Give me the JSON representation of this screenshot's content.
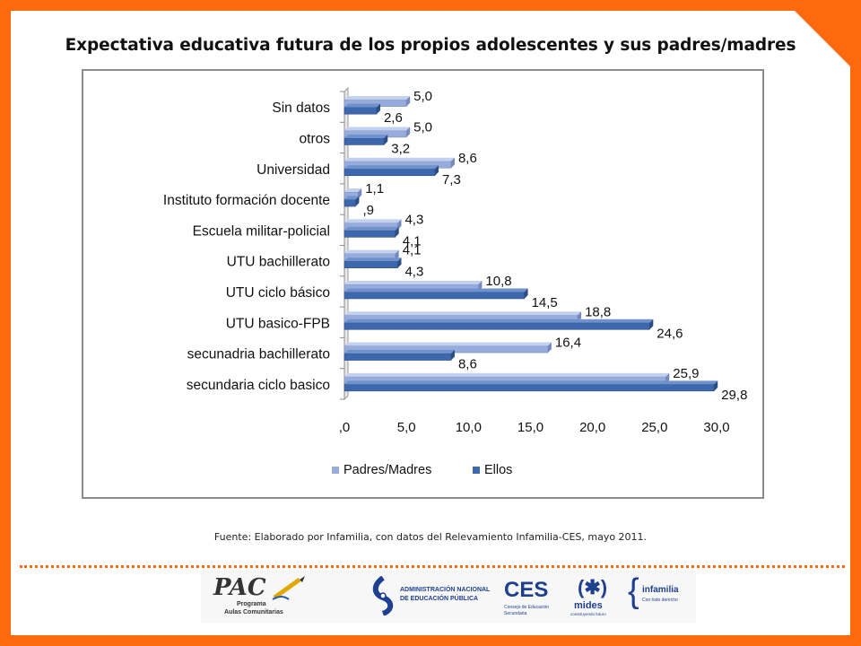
{
  "title": "Expectativa educativa futura de los propios adolescentes y sus padres/madres",
  "source": "Fuente: Elaborado por Infamilia, con datos del Relevamiento Infamilia-CES, mayo 2011.",
  "colors": {
    "background_border": "#ff6a0f",
    "padres": "#98acdc",
    "ellos": "#3e68ad"
  },
  "logos": {
    "pac": {
      "name": "PAC",
      "line1": "Programa",
      "line2": "Aulas Comunitarias"
    },
    "anep": {
      "line1": "ADMINISTRACIÓN NACIONAL",
      "line2": "DE EDUCACIÓN PÚBLICA"
    },
    "ces": {
      "name": "CES",
      "line1": "Consejo de Educación",
      "line2": "Secundaria"
    },
    "mides": {
      "name": "mides",
      "tagline": "construyendo futuro"
    },
    "infamilia": {
      "name": "infamilia",
      "tagline": "Con todo derecho"
    }
  },
  "chart_data": {
    "type": "bar",
    "orientation": "horizontal",
    "categories": [
      "Sin datos",
      "otros",
      "Universidad",
      "Instituto formación docente",
      "Escuela militar-policial",
      "UTU bachillerato",
      "UTU ciclo básico",
      "UTU basico-FPB",
      "secunadria bachillerato",
      "secundaria ciclo basico"
    ],
    "series": [
      {
        "name": "Padres/Madres",
        "values": [
          5.0,
          5.0,
          8.6,
          1.1,
          4.3,
          4.1,
          10.8,
          18.8,
          16.4,
          25.9
        ],
        "labels": [
          "5,0",
          "5,0",
          "8,6",
          "1,1",
          "4,3",
          "4,1",
          "10,8",
          "18,8",
          "16,4",
          "25,9"
        ]
      },
      {
        "name": "Ellos",
        "values": [
          2.6,
          3.2,
          7.3,
          0.9,
          4.1,
          4.3,
          14.5,
          24.6,
          8.6,
          29.8
        ],
        "labels": [
          "2,6",
          "3,2",
          "7,3",
          ",9",
          "4,1",
          "4,3",
          "14,5",
          "24,6",
          "8,6",
          "29,8"
        ]
      }
    ],
    "xticks": [
      ",0",
      "5,0",
      "10,0",
      "15,0",
      "20,0",
      "25,0",
      "30,0"
    ],
    "xlim": [
      0,
      30
    ],
    "grid": false,
    "legend": "bottom"
  }
}
